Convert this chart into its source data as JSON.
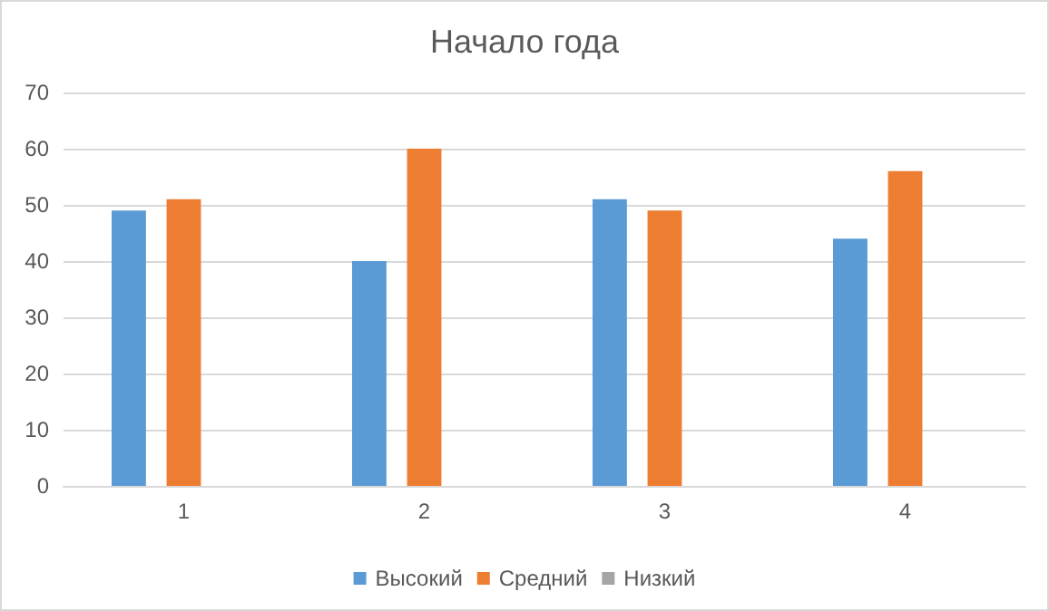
{
  "chart_data": {
    "type": "bar",
    "title": "Начало года",
    "categories": [
      "1",
      "2",
      "3",
      "4"
    ],
    "series": [
      {
        "name": "Высокий",
        "color": "#5b9bd5",
        "values": [
          49,
          40,
          51,
          44
        ]
      },
      {
        "name": "Средний",
        "color": "#ed7d31",
        "values": [
          51,
          60,
          49,
          56
        ]
      },
      {
        "name": "Низкий",
        "color": "#a5a5a5",
        "values": [
          null,
          null,
          null,
          null
        ]
      }
    ],
    "ylim": [
      0,
      70
    ],
    "yticks": [
      0,
      10,
      20,
      30,
      40,
      50,
      60,
      70
    ],
    "grid": "y",
    "legend": "bottom"
  }
}
